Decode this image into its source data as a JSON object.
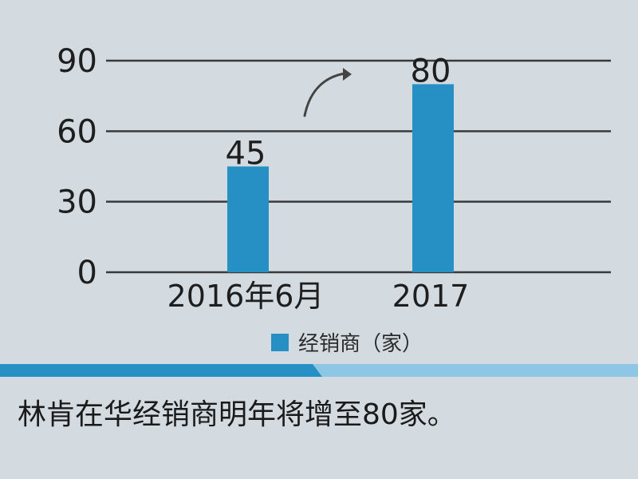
{
  "chart_data": {
    "type": "bar",
    "categories": [
      "2016年6月",
      "2017"
    ],
    "series": [
      {
        "name": "经销商（家）",
        "values": [
          45,
          80
        ]
      }
    ],
    "data_labels": [
      "45",
      "80"
    ],
    "yticks": [
      0,
      30,
      60,
      90
    ],
    "ylim": [
      0,
      90
    ],
    "grid": true,
    "legend": "bottom-center",
    "annotation": "curved arrow pointing up-right between bars",
    "colors": {
      "bar": "#2690c4",
      "axis": "#3a3a3a",
      "background": "#d3dbe0"
    }
  },
  "legend": {
    "label": "经销商（家）"
  },
  "caption": "林肯在华经销商明年将增至80家。",
  "colors": {
    "stripe_dark": "#2690c4",
    "stripe_light": "#8ec7e6"
  }
}
